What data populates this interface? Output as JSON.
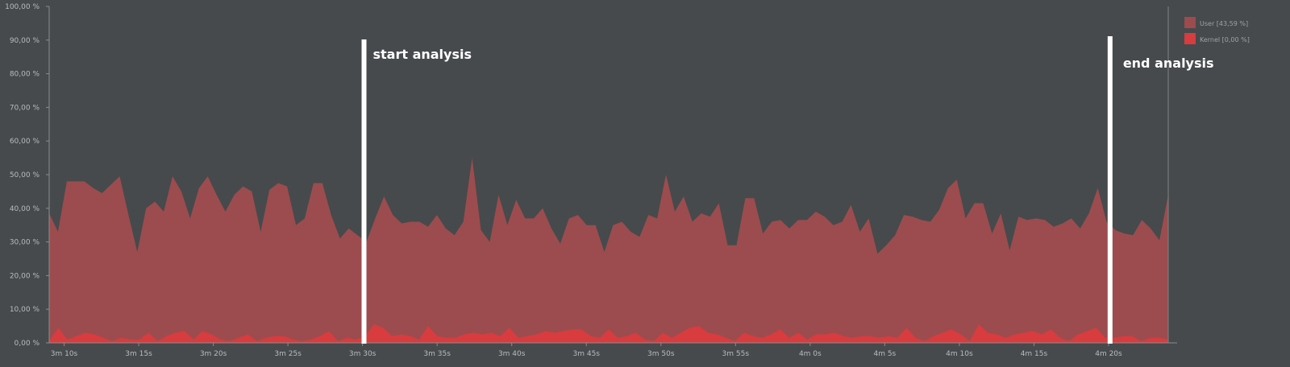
{
  "chart_data": {
    "type": "area",
    "ylim": [
      0,
      100
    ],
    "y_ticks": [
      "0,00 %",
      "10,00 %",
      "20,00 %",
      "30,00 %",
      "40,00 %",
      "50,00 %",
      "60,00 %",
      "70,00 %",
      "80,00 %",
      "90,00 %",
      "100,00 %"
    ],
    "x_range_seconds": [
      189,
      264
    ],
    "x_ticks": [
      {
        "label": "3m 10s",
        "t": 190
      },
      {
        "label": "3m 15s",
        "t": 195
      },
      {
        "label": "3m 20s",
        "t": 200
      },
      {
        "label": "3m 25s",
        "t": 205
      },
      {
        "label": "3m 30s",
        "t": 210
      },
      {
        "label": "3m 35s",
        "t": 215
      },
      {
        "label": "3m 40s",
        "t": 220
      },
      {
        "label": "3m 45s",
        "t": 225
      },
      {
        "label": "3m 50s",
        "t": 230
      },
      {
        "label": "3m 55s",
        "t": 235
      },
      {
        "label": "4m 0s",
        "t": 240
      },
      {
        "label": "4m 5s",
        "t": 245
      },
      {
        "label": "4m 10s",
        "t": 250
      },
      {
        "label": "4m 15s",
        "t": 255
      },
      {
        "label": "4m 20s",
        "t": 260
      }
    ],
    "series": [
      {
        "name": "User [43,59 %]",
        "color": "#9c4c4e",
        "values": [
          38.5,
          33,
          48,
          48,
          48,
          46,
          44.5,
          47,
          49.5,
          38,
          27,
          40,
          42,
          39,
          49.5,
          45,
          37,
          46,
          49.5,
          44,
          39,
          44,
          46.5,
          45,
          33,
          45.5,
          47.5,
          46.5,
          35,
          37,
          47.5,
          47.5,
          38,
          31,
          34,
          32,
          30,
          37,
          43.5,
          38,
          35.5,
          36,
          36,
          34.5,
          38,
          34,
          32,
          36,
          55,
          33.5,
          30,
          44,
          35,
          42.5,
          37,
          37,
          40,
          34,
          29.5,
          37,
          38,
          35,
          35,
          27,
          35,
          36,
          33,
          31.5,
          38,
          37,
          50,
          39,
          43.5,
          36,
          38.5,
          37.5,
          41.5,
          29,
          29,
          43,
          43,
          32.5,
          36,
          36.5,
          34,
          36.5,
          36.5,
          39,
          37.5,
          35,
          36,
          41,
          33,
          37,
          26.5,
          29,
          32,
          38,
          37.5,
          36.5,
          36,
          39.5,
          46,
          48.5,
          37,
          41.5,
          41.5,
          32.5,
          38.5,
          27.5,
          37.5,
          36.5,
          37,
          36.5,
          34.5,
          35.5,
          37,
          34,
          38.5,
          46,
          36,
          33.5,
          32.5,
          32,
          36.5,
          34,
          30.5,
          44
        ]
      },
      {
        "name": "Kernel [0,00 %]",
        "color": "#d83c3e",
        "values": [
          0.5,
          4.5,
          1,
          2,
          3,
          2.5,
          1.5,
          0.5,
          1.5,
          1,
          1,
          3,
          0.5,
          2,
          3,
          3.5,
          1,
          3.5,
          2.5,
          1,
          0.5,
          1.5,
          2.5,
          0.5,
          1.5,
          2,
          2,
          1,
          0.5,
          1,
          2,
          3.5,
          0.5,
          1.5,
          1,
          2,
          5.5,
          4.5,
          2,
          2.5,
          2,
          1,
          5,
          2,
          1.5,
          1.5,
          2.5,
          3,
          2.5,
          3,
          2,
          4.5,
          1.5,
          2,
          2.5,
          3.5,
          3,
          3.5,
          4,
          4,
          2,
          1.5,
          4,
          1.5,
          2,
          3,
          1,
          0.5,
          3,
          1.5,
          3,
          4.5,
          5,
          3,
          2.5,
          1.5,
          0.5,
          3,
          2,
          1.5,
          2.5,
          4,
          1.5,
          3,
          1,
          2.5,
          2.5,
          3,
          2,
          1.5,
          2,
          2,
          1.5,
          2,
          1.5,
          4.5,
          1.5,
          0.5,
          2,
          3,
          4,
          2.5,
          0.5,
          5.5,
          3,
          2.5,
          1.5,
          2.5,
          3,
          3.5,
          2.5,
          4,
          1.5,
          0.5,
          2.5,
          3.5,
          4.5,
          1.5,
          1.5,
          2,
          2,
          0.5,
          1.5,
          1.5,
          1
        ]
      }
    ],
    "legend_position": "top-right",
    "annotations": [
      {
        "text": "start analysis",
        "t": 210.1
      },
      {
        "text": "end analysis",
        "t": 260.1
      }
    ]
  }
}
